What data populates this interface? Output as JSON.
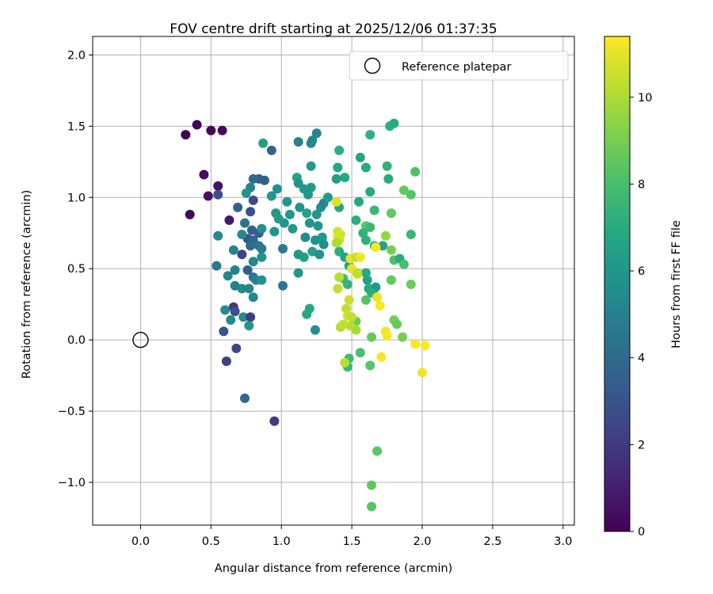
{
  "chart_data": {
    "type": "scatter",
    "title": "FOV centre drift starting at 2025/12/06 01:37:35",
    "xlabel": "Angular distance from reference (arcmin)",
    "ylabel": "Rotation from reference (arcmin)",
    "xlim": [
      -0.34,
      3.08
    ],
    "ylim": [
      -1.3,
      2.13
    ],
    "xticks": [
      0.0,
      0.5,
      1.0,
      1.5,
      2.0,
      2.5,
      3.0
    ],
    "xtick_labels": [
      "0.0",
      "0.5",
      "1.0",
      "1.5",
      "2.0",
      "2.5",
      "3.0"
    ],
    "yticks": [
      -1.0,
      -0.5,
      0.0,
      0.5,
      1.0,
      1.5,
      2.0
    ],
    "ytick_labels": [
      "−1.0",
      "−0.5",
      "0.0",
      "0.5",
      "1.0",
      "1.5",
      "2.0"
    ],
    "grid": true,
    "legend": {
      "location": "upper right",
      "entries": [
        "Reference platepar"
      ]
    },
    "reference_point": {
      "x": 0.0,
      "y": 0.0
    },
    "colorbar": {
      "label": "Hours from first FF file",
      "colormap": "viridis",
      "range": [
        0,
        11.4
      ],
      "ticks": [
        0,
        2,
        4,
        6,
        8,
        10
      ],
      "tick_labels": [
        "0",
        "2",
        "4",
        "6",
        "8",
        "10"
      ]
    },
    "series": [
      {
        "name": "FOV centre drift",
        "points": [
          [
            0.32,
            1.44,
            0.0
          ],
          [
            0.4,
            1.51,
            0.1
          ],
          [
            0.5,
            1.47,
            0.2
          ],
          [
            0.58,
            1.47,
            0.3
          ],
          [
            0.45,
            1.16,
            0.4
          ],
          [
            0.55,
            1.08,
            0.6
          ],
          [
            0.48,
            1.01,
            0.5
          ],
          [
            0.35,
            0.88,
            0.2
          ],
          [
            0.63,
            0.84,
            0.8
          ],
          [
            0.55,
            1.02,
            2.8
          ],
          [
            0.69,
            0.93,
            3.5
          ],
          [
            0.55,
            0.73,
            5.4
          ],
          [
            0.66,
            0.63,
            5.2
          ],
          [
            0.72,
            0.6,
            2.3
          ],
          [
            0.76,
            0.71,
            3.0
          ],
          [
            0.54,
            0.52,
            4.5
          ],
          [
            0.62,
            0.45,
            5.3
          ],
          [
            0.67,
            0.49,
            5.0
          ],
          [
            0.76,
            0.49,
            3.4
          ],
          [
            0.8,
            0.44,
            4.5
          ],
          [
            0.67,
            0.38,
            5.0
          ],
          [
            0.72,
            0.36,
            5.5
          ],
          [
            0.77,
            0.36,
            5.2
          ],
          [
            0.8,
            0.3,
            5.4
          ],
          [
            0.66,
            0.23,
            1.8
          ],
          [
            0.67,
            0.2,
            2.8
          ],
          [
            0.6,
            0.21,
            5.6
          ],
          [
            0.64,
            0.14,
            5.4
          ],
          [
            0.73,
            0.16,
            5.6
          ],
          [
            0.78,
            0.16,
            2.0
          ],
          [
            0.77,
            0.1,
            6.0
          ],
          [
            0.59,
            0.06,
            3.0
          ],
          [
            0.68,
            -0.06,
            2.4
          ],
          [
            0.61,
            -0.15,
            2.2
          ],
          [
            0.74,
            -0.41,
            3.8
          ],
          [
            0.95,
            -0.57,
            2.0
          ],
          [
            0.8,
            0.98,
            2.6
          ],
          [
            0.84,
            1.13,
            3.5
          ],
          [
            0.8,
            1.13,
            4.0
          ],
          [
            0.88,
            1.12,
            3.5
          ],
          [
            0.87,
            1.38,
            6.4
          ],
          [
            0.93,
            1.33,
            3.6
          ],
          [
            0.78,
            1.07,
            5.0
          ],
          [
            0.75,
            1.03,
            5.8
          ],
          [
            0.78,
            0.9,
            2.9
          ],
          [
            0.74,
            0.82,
            4.4
          ],
          [
            0.79,
            0.77,
            3.4
          ],
          [
            0.72,
            0.74,
            5.4
          ],
          [
            0.8,
            0.7,
            3.8
          ],
          [
            0.78,
            0.66,
            4.0
          ],
          [
            0.84,
            0.66,
            4.6
          ],
          [
            0.84,
            0.75,
            3.4
          ],
          [
            0.86,
            0.78,
            5.7
          ],
          [
            0.86,
            0.64,
            4.8
          ],
          [
            0.8,
            0.55,
            5.4
          ],
          [
            0.86,
            0.58,
            5.8
          ],
          [
            0.82,
            0.42,
            5.0
          ],
          [
            0.86,
            0.42,
            5.8
          ],
          [
            0.93,
            1.01,
            6.1
          ],
          [
            0.97,
            1.06,
            5.8
          ],
          [
            0.96,
            0.89,
            6.2
          ],
          [
            0.98,
            0.85,
            6.3
          ],
          [
            1.02,
            0.82,
            6.0
          ],
          [
            0.95,
            0.76,
            6.0
          ],
          [
            1.04,
            0.97,
            5.9
          ],
          [
            1.06,
            0.88,
            6.1
          ],
          [
            1.08,
            0.78,
            6.2
          ],
          [
            1.01,
            0.64,
            4.8
          ],
          [
            1.01,
            0.38,
            4.6
          ],
          [
            1.11,
            1.14,
            6.7
          ],
          [
            1.12,
            1.1,
            5.9
          ],
          [
            1.16,
            1.06,
            6.2
          ],
          [
            1.19,
            1.02,
            6.0
          ],
          [
            1.21,
            1.07,
            6.2
          ],
          [
            1.13,
            0.93,
            5.9
          ],
          [
            1.18,
            0.89,
            6.6
          ],
          [
            1.2,
            0.82,
            6.0
          ],
          [
            1.17,
            0.72,
            5.6
          ],
          [
            1.24,
            0.7,
            5.8
          ],
          [
            1.12,
            0.6,
            6.0
          ],
          [
            1.16,
            0.58,
            6.4
          ],
          [
            1.22,
            0.62,
            6.6
          ],
          [
            1.27,
            0.6,
            5.8
          ],
          [
            1.25,
            0.88,
            6.1
          ],
          [
            1.28,
            0.93,
            5.6
          ],
          [
            1.3,
            0.96,
            5.2
          ],
          [
            1.26,
            0.8,
            5.9
          ],
          [
            1.29,
            0.72,
            6.1
          ],
          [
            1.3,
            0.67,
            5.7
          ],
          [
            1.12,
            0.47,
            6.0
          ],
          [
            1.12,
            1.39,
            5.0
          ],
          [
            1.21,
            1.38,
            5.2
          ],
          [
            1.22,
            1.4,
            5.4
          ],
          [
            1.25,
            1.45,
            5.1
          ],
          [
            1.21,
            1.22,
            6.2
          ],
          [
            1.18,
            0.18,
            6.8
          ],
          [
            1.2,
            0.22,
            7.0
          ],
          [
            1.24,
            0.07,
            5.6
          ],
          [
            1.33,
            1.0,
            6.3
          ],
          [
            1.4,
            1.21,
            6.8
          ],
          [
            1.41,
            1.33,
            7.3
          ],
          [
            1.45,
            1.14,
            7.0
          ],
          [
            1.39,
            1.13,
            6.4
          ],
          [
            1.41,
            0.93,
            6.9
          ],
          [
            1.41,
            0.62,
            7.2
          ],
          [
            1.45,
            0.58,
            6.7
          ],
          [
            1.48,
            0.52,
            6.6
          ],
          [
            1.44,
            0.43,
            7.7
          ],
          [
            1.47,
            0.39,
            7.5
          ],
          [
            1.53,
            0.84,
            7.2
          ],
          [
            1.55,
            0.97,
            6.8
          ],
          [
            1.6,
            1.21,
            7.0
          ],
          [
            1.56,
            1.28,
            6.7
          ],
          [
            1.63,
            1.04,
            7.0
          ],
          [
            1.66,
            0.91,
            7.6
          ],
          [
            1.6,
            0.8,
            8.5
          ],
          [
            1.63,
            0.79,
            7.7
          ],
          [
            1.58,
            0.75,
            7.4
          ],
          [
            1.6,
            0.7,
            7.4
          ],
          [
            1.66,
            0.66,
            7.5
          ],
          [
            1.72,
            0.66,
            6.7
          ],
          [
            1.74,
            0.73,
            9.6
          ],
          [
            1.78,
            0.89,
            8.6
          ],
          [
            1.78,
            0.63,
            9.0
          ],
          [
            1.8,
            0.56,
            8.2
          ],
          [
            1.84,
            0.57,
            7.1
          ],
          [
            1.87,
            0.53,
            8.0
          ],
          [
            1.78,
            0.42,
            8.6
          ],
          [
            1.63,
            1.44,
            7.3
          ],
          [
            1.77,
            1.5,
            7.3
          ],
          [
            1.8,
            1.52,
            7.0
          ],
          [
            1.75,
            1.22,
            7.4
          ],
          [
            1.76,
            1.13,
            7.0
          ],
          [
            1.87,
            1.05,
            8.6
          ],
          [
            1.92,
            1.02,
            8.3
          ],
          [
            1.95,
            1.18,
            8.2
          ],
          [
            1.92,
            0.74,
            7.6
          ],
          [
            1.92,
            0.39,
            8.8
          ],
          [
            1.6,
            0.47,
            7.0
          ],
          [
            1.61,
            0.42,
            6.6
          ],
          [
            1.62,
            0.36,
            6.9
          ],
          [
            1.66,
            0.36,
            7.0
          ],
          [
            1.67,
            0.37,
            6.2
          ],
          [
            1.64,
            0.33,
            7.2
          ],
          [
            1.6,
            0.28,
            8.3
          ],
          [
            1.53,
            0.13,
            8.8
          ],
          [
            1.8,
            0.14,
            9.0
          ],
          [
            1.82,
            0.11,
            8.7
          ],
          [
            1.86,
            0.02,
            9.0
          ],
          [
            1.64,
            0.02,
            8.7
          ],
          [
            1.48,
            -0.13,
            7.8
          ],
          [
            1.47,
            -0.19,
            7.6
          ],
          [
            1.56,
            -0.09,
            8.0
          ],
          [
            1.63,
            -0.18,
            8.4
          ],
          [
            1.45,
            -0.16,
            10.2
          ],
          [
            1.68,
            -0.78,
            8.5
          ],
          [
            1.64,
            -1.02,
            8.6
          ],
          [
            1.64,
            -1.17,
            8.4
          ],
          [
            1.39,
            0.97,
            10.8
          ],
          [
            1.4,
            0.76,
            10.6
          ],
          [
            1.4,
            0.73,
            11.0
          ],
          [
            1.41,
            0.7,
            10.4
          ],
          [
            1.39,
            0.68,
            10.0
          ],
          [
            1.42,
            0.74,
            10.7
          ],
          [
            1.41,
            0.44,
            10.2
          ],
          [
            1.4,
            0.36,
            10.4
          ],
          [
            1.48,
            0.28,
            10.5
          ],
          [
            1.46,
            0.22,
            10.4
          ],
          [
            1.47,
            0.17,
            10.6
          ],
          [
            1.5,
            0.16,
            10.3
          ],
          [
            1.49,
            0.1,
            10.2
          ],
          [
            1.42,
            0.09,
            10.1
          ],
          [
            1.44,
            0.11,
            10.4
          ],
          [
            1.53,
            0.07,
            10.0
          ],
          [
            1.49,
            0.57,
            11.0
          ],
          [
            1.53,
            0.58,
            10.4
          ],
          [
            1.56,
            0.58,
            11.2
          ],
          [
            1.5,
            0.5,
            11.0
          ],
          [
            1.54,
            0.46,
            11.2
          ],
          [
            1.54,
            0.47,
            10.3
          ],
          [
            1.67,
            0.65,
            11.3
          ],
          [
            1.68,
            0.3,
            11.1
          ],
          [
            1.7,
            0.24,
            11.3
          ],
          [
            1.74,
            0.06,
            11.2
          ],
          [
            1.75,
            0.03,
            11.3
          ],
          [
            1.71,
            -0.12,
            11.3
          ],
          [
            1.95,
            -0.03,
            11.3
          ],
          [
            2.02,
            -0.04,
            11.4
          ],
          [
            2.0,
            -0.23,
            11.2
          ]
        ]
      }
    ]
  }
}
